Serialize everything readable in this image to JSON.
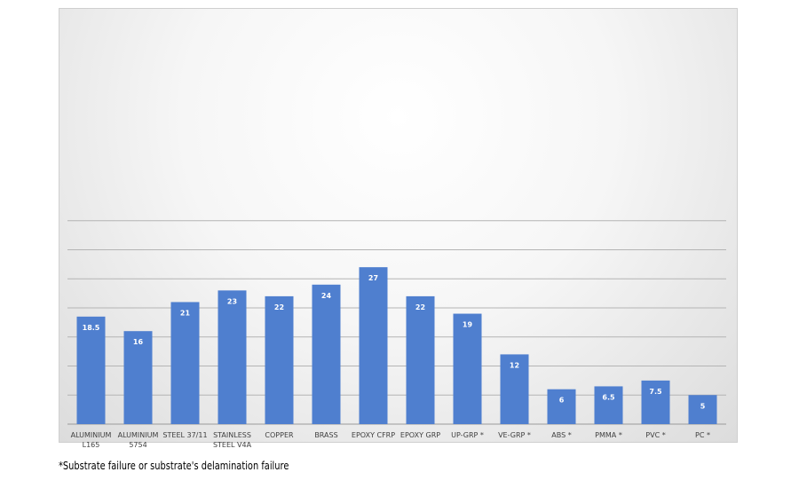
{
  "chart_data": {
    "type": "bar",
    "title": "",
    "xlabel": "",
    "ylabel": "",
    "ylim": [
      0,
      35
    ],
    "grid": true,
    "color": "#4f7fcf",
    "categories": [
      "ALUMINIUM L165",
      "ALUMINIUM 5754",
      "STEEL 37/11",
      "STAINLESS STEEL V4A",
      "COPPER",
      "BRASS",
      "EPOXY CFRP",
      "EPOXY GRP",
      "UP-GRP *",
      "VE-GRP *",
      "ABS *",
      "PMMA *",
      "PVC *",
      "PC *"
    ],
    "category_lines": [
      [
        "ALUMINIUM",
        "L165"
      ],
      [
        "ALUMINIUM",
        "5754"
      ],
      [
        "STEEL 37/11"
      ],
      [
        "STAINLESS",
        "STEEL V4A"
      ],
      [
        "COPPER"
      ],
      [
        "BRASS"
      ],
      [
        "EPOXY CFRP"
      ],
      [
        "EPOXY GRP"
      ],
      [
        "UP-GRP *"
      ],
      [
        "VE-GRP *"
      ],
      [
        "ABS *"
      ],
      [
        "PMMA *"
      ],
      [
        "PVC *"
      ],
      [
        "PC *"
      ]
    ],
    "values": [
      18.5,
      16,
      21,
      23,
      22,
      24,
      27,
      22,
      19,
      12,
      6,
      6.5,
      7.5,
      5
    ],
    "value_labels": [
      "18.5",
      "16",
      "21",
      "23",
      "22",
      "24",
      "27",
      "22",
      "19",
      "12",
      "6",
      "6.5",
      "7.5",
      "5"
    ]
  },
  "footnote": "*Substrate failure or substrate's delamination failure"
}
